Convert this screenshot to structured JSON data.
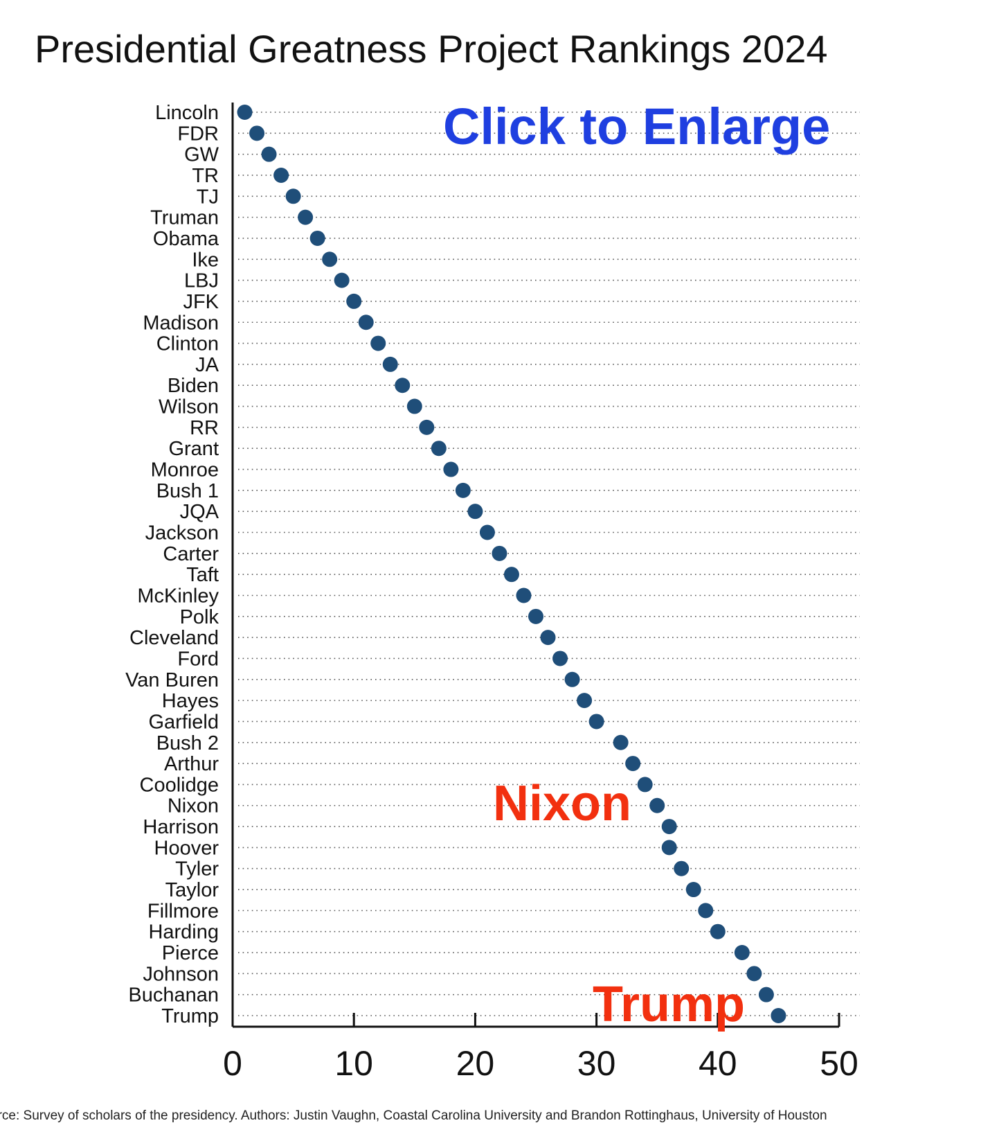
{
  "chart_data": {
    "type": "scatter",
    "title": "Presidential Greatness Project Rankings 2024",
    "xlim": [
      0,
      50
    ],
    "xticks": [
      0,
      10,
      20,
      30,
      40,
      50
    ],
    "grid": "dotted horizontal guide lines",
    "marker_color": "#1f4e79",
    "categories": [
      "Lincoln",
      "FDR",
      "GW",
      "TR",
      "TJ",
      "Truman",
      "Obama",
      "Ike",
      "LBJ",
      "JFK",
      "Madison",
      "Clinton",
      "JA",
      "Biden",
      "Wilson",
      "RR",
      "Grant",
      "Monroe",
      "Bush 1",
      "JQA",
      "Jackson",
      "Carter",
      "Taft",
      "McKinley",
      "Polk",
      "Cleveland",
      "Ford",
      "Van Buren",
      "Hayes",
      "Garfield",
      "Bush 2",
      "Arthur",
      "Coolidge",
      "Nixon",
      "Harrison",
      "Hoover",
      "Tyler",
      "Taylor",
      "Fillmore",
      "Harding",
      "Pierce",
      "Johnson",
      "Buchanan",
      "Trump"
    ],
    "values": [
      1,
      2,
      3,
      4,
      5,
      6,
      7,
      8,
      9,
      10,
      11,
      12,
      13,
      14,
      15,
      16,
      17,
      18,
      19,
      20,
      21,
      22,
      23,
      24,
      25,
      26,
      27,
      28,
      29,
      30,
      32,
      33,
      34,
      35,
      36,
      36,
      37,
      38,
      39,
      40,
      42,
      43,
      44,
      45
    ]
  },
  "overlays": {
    "enlarge_text": "Click to Enlarge",
    "enlarge_color": "#1f3fe0",
    "nixon_text": "Nixon",
    "trump_text": "Trump",
    "highlight_color": "#f2300f"
  },
  "source": "urce: Survey of scholars of the presidency.  Authors: Justin Vaughn, Coastal Carolina University and Brandon Rottinghaus, University of Houston"
}
